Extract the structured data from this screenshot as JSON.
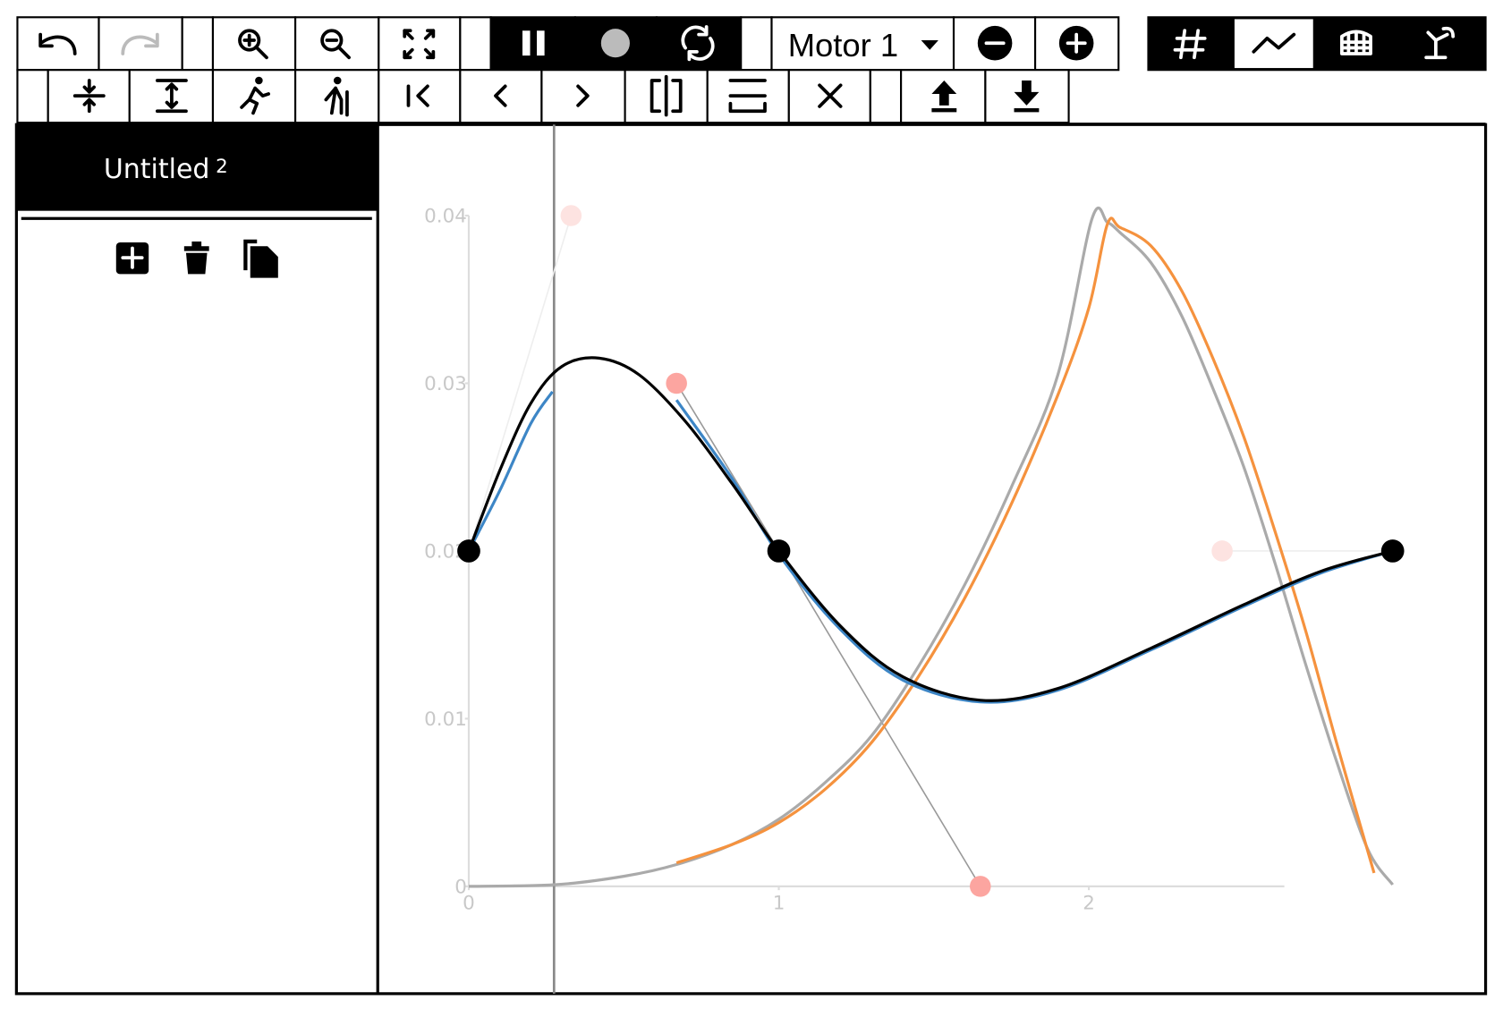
{
  "toolbar": {
    "motor_select": "Motor 1"
  },
  "sidebar": {
    "title": "Untitled",
    "badge": "2"
  },
  "plot": {
    "type": "line",
    "xlim": [
      0,
      3
    ],
    "ylim": [
      0,
      0.04
    ],
    "xticks": [
      0,
      1,
      2
    ],
    "yticks": [
      0,
      0.01,
      0.02,
      0.03,
      0.04
    ],
    "playhead": 0.275,
    "series": [
      {
        "color": "#aaaaaa",
        "x": [
          0,
          0.28,
          0.5,
          0.67,
          0.85,
          1.0,
          1.15,
          1.3,
          1.45,
          1.6,
          1.75,
          1.9,
          2.01,
          2.06,
          2.1,
          2.2,
          2.3,
          2.4,
          2.5,
          2.6,
          2.7,
          2.8,
          2.9,
          2.98
        ],
        "values": [
          0,
          0.0001,
          0.0006,
          0.0013,
          0.0025,
          0.004,
          0.0062,
          0.009,
          0.0131,
          0.018,
          0.0238,
          0.0305,
          0.0398,
          0.0396,
          0.039,
          0.0372,
          0.034,
          0.0297,
          0.025,
          0.0193,
          0.0132,
          0.0074,
          0.0022,
          0.0001
        ]
      },
      {
        "color": "#f5923e",
        "x": [
          0.67,
          0.85,
          1.0,
          1.15,
          1.3,
          1.45,
          1.6,
          1.75,
          1.9,
          2.0,
          2.06,
          2.1,
          2.2,
          2.3,
          2.4,
          2.5,
          2.6,
          2.7,
          2.8,
          2.92
        ],
        "values": [
          0.0014,
          0.0025,
          0.0038,
          0.0058,
          0.0086,
          0.0125,
          0.0172,
          0.0228,
          0.0293,
          0.0345,
          0.0395,
          0.0393,
          0.0382,
          0.0355,
          0.0315,
          0.0268,
          0.0212,
          0.0152,
          0.0085,
          0.0008
        ]
      },
      {
        "color": "#3d86c6",
        "x": [
          0,
          0.1,
          0.2,
          0.27,
          0.55,
          0.67,
          0.85,
          1.0,
          1.2,
          1.4,
          1.65,
          1.9,
          2.2,
          2.5,
          2.75,
          2.98
        ],
        "values": [
          0.02,
          0.0236,
          0.0276,
          0.0295,
          null,
          0.029,
          0.0243,
          0.0198,
          0.0153,
          0.0123,
          0.011,
          0.0117,
          0.0141,
          0.0167,
          0.0187,
          0.02
        ]
      },
      {
        "color": "#000000",
        "x": [
          0,
          0.1,
          0.2,
          0.3,
          0.42,
          0.55,
          0.7,
          0.85,
          1.0,
          1.2,
          1.4,
          1.65,
          1.9,
          2.2,
          2.5,
          2.75,
          2.98
        ],
        "values": [
          0.02,
          0.0248,
          0.0288,
          0.031,
          0.0315,
          0.0305,
          0.0277,
          0.024,
          0.02,
          0.0155,
          0.0125,
          0.0111,
          0.0118,
          0.0142,
          0.0168,
          0.0188,
          0.02
        ]
      }
    ],
    "control_points": {
      "x": [
        0.33,
        0.67,
        1.65,
        2.43
      ],
      "values": [
        0.04,
        0.03,
        0,
        0.02
      ]
    },
    "knots": {
      "x": [
        0,
        1,
        2.98
      ],
      "values": [
        0.02,
        0.02,
        0.02
      ]
    }
  }
}
